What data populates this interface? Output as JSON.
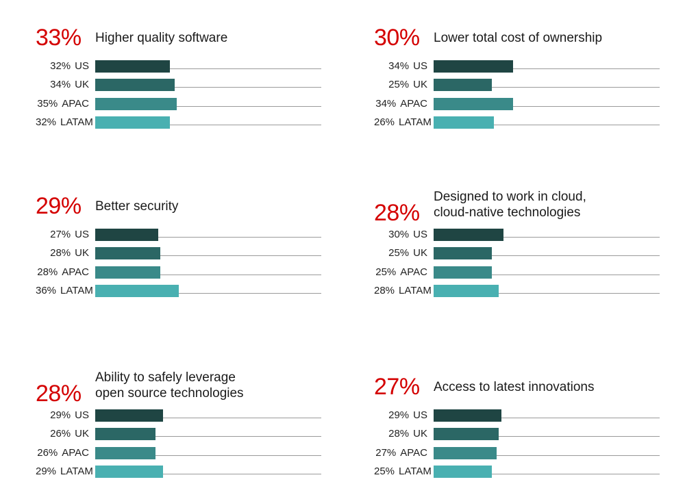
{
  "chart_data": [
    {
      "type": "bar",
      "value": "33%",
      "title": "Higher quality software",
      "categories": [
        "US",
        "UK",
        "APAC",
        "LATAM"
      ],
      "labels": [
        "32%",
        "34%",
        "35%",
        "32%"
      ],
      "values": [
        32,
        34,
        35,
        32
      ]
    },
    {
      "type": "bar",
      "value": "30%",
      "title": "Lower total cost of ownership",
      "categories": [
        "US",
        "UK",
        "APAC",
        "LATAM"
      ],
      "labels": [
        "34%",
        "25%",
        "34%",
        "26%"
      ],
      "values": [
        34,
        25,
        34,
        26
      ]
    },
    {
      "type": "bar",
      "value": "29%",
      "title": "Better security",
      "categories": [
        "US",
        "UK",
        "APAC",
        "LATAM"
      ],
      "labels": [
        "27%",
        "28%",
        "28%",
        "36%"
      ],
      "values": [
        27,
        28,
        28,
        36
      ]
    },
    {
      "type": "bar",
      "value": "28%",
      "title": "Designed to work in cloud,\ncloud-native technologies",
      "categories": [
        "US",
        "UK",
        "APAC",
        "LATAM"
      ],
      "labels": [
        "30%",
        "25%",
        "25%",
        "28%"
      ],
      "values": [
        30,
        25,
        25,
        28
      ]
    },
    {
      "type": "bar",
      "value": "28%",
      "title": "Ability to safely leverage\nopen source technologies",
      "categories": [
        "US",
        "UK",
        "APAC",
        "LATAM"
      ],
      "labels": [
        "29%",
        "26%",
        "26%",
        "29%"
      ],
      "values": [
        29,
        26,
        26,
        29
      ]
    },
    {
      "type": "bar",
      "value": "27%",
      "title": "Access to latest innovations",
      "categories": [
        "US",
        "UK",
        "APAC",
        "LATAM"
      ],
      "labels": [
        "29%",
        "28%",
        "27%",
        "25%"
      ],
      "values": [
        29,
        28,
        27,
        25
      ]
    }
  ],
  "colors": {
    "accent": "#d40000",
    "US": "#1f4543",
    "UK": "#2b6765",
    "APAC": "#3a8a89",
    "LATAM": "#49b0b1",
    "baseline": "#9a9a9a"
  }
}
